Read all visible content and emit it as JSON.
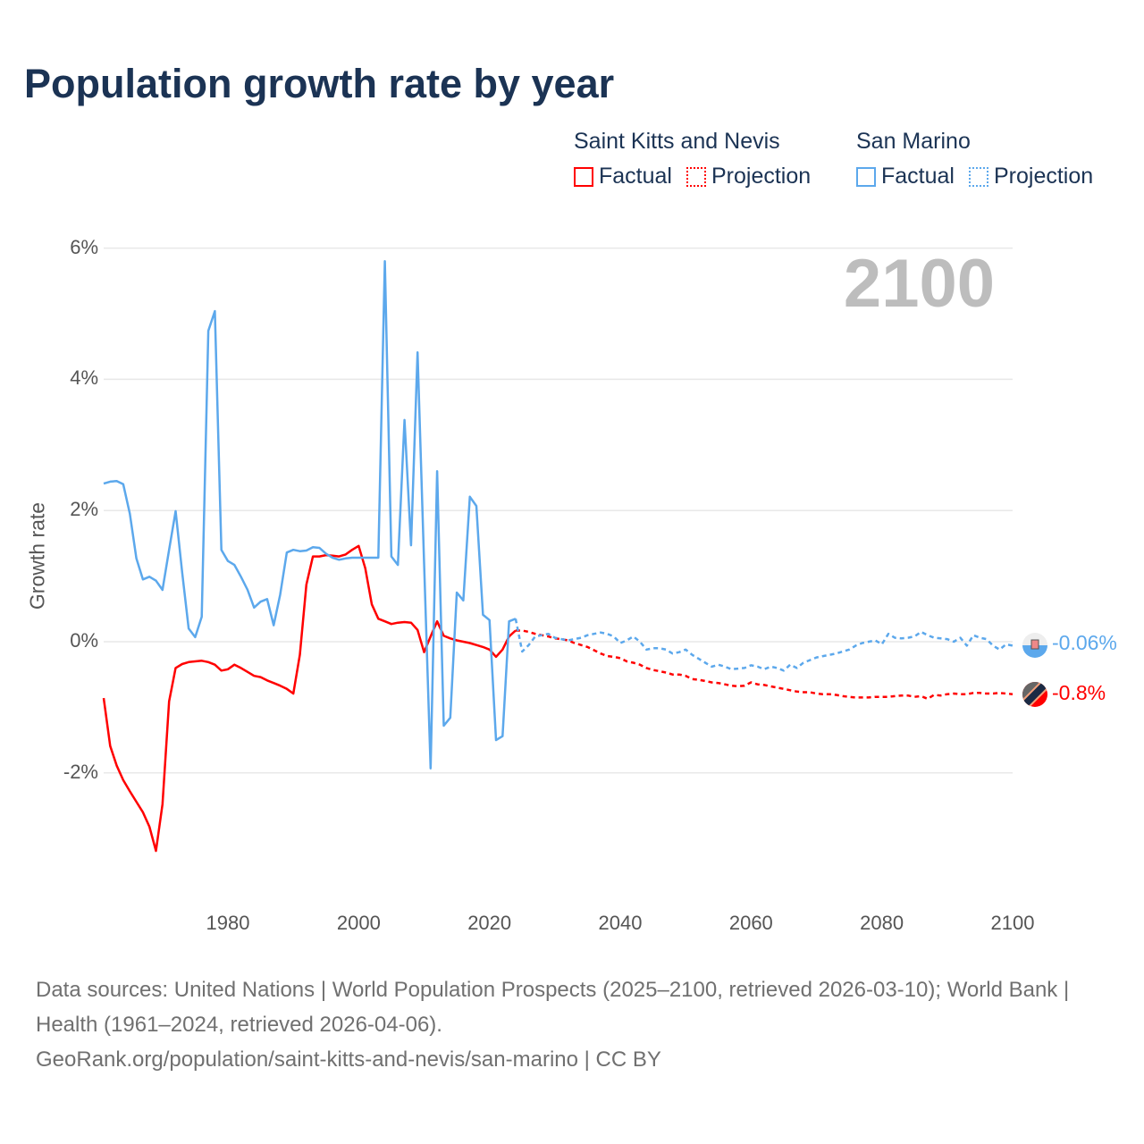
{
  "title": "Population growth rate by year",
  "legend": {
    "groups": [
      {
        "name": "Saint Kitts and Nevis",
        "factual": "Factual",
        "projection": "Projection",
        "color": "#ff0000"
      },
      {
        "name": "San Marino",
        "factual": "Factual",
        "projection": "Projection",
        "color": "#5ca8ec"
      }
    ]
  },
  "current_year_label": "2100",
  "end_labels": {
    "san_marino": "-0.06%",
    "saint_kitts": "-0.8%"
  },
  "footer": {
    "line1": "Data sources: United Nations | World Population Prospects (2025–2100, retrieved 2026-03-10); World Bank | Health (1961–2024, retrieved 2026-04-06).",
    "line2": "GeoRank.org/population/saint-kitts-and-nevis/san-marino | CC BY"
  },
  "chart_data": {
    "type": "line",
    "title": "Population growth rate by year",
    "xlabel": "",
    "ylabel": "Growth rate",
    "xlim": [
      1961,
      2100
    ],
    "ylim": [
      -3.5,
      6
    ],
    "x_ticks": [
      1980,
      2000,
      2020,
      2040,
      2060,
      2080,
      2100
    ],
    "y_ticks": [
      {
        "v": 6,
        "label": "6%"
      },
      {
        "v": 4,
        "label": "4%"
      },
      {
        "v": 2,
        "label": "2%"
      },
      {
        "v": 0,
        "label": "0%"
      },
      {
        "v": -2,
        "label": "-2%"
      }
    ],
    "grid": true,
    "legend_position": "top-right",
    "series": [
      {
        "name": "Saint Kitts and Nevis",
        "kind": "Factual",
        "color": "#ff0000",
        "x_start": 1961,
        "values": [
          -0.86,
          -1.59,
          -1.89,
          -2.11,
          -2.28,
          -2.44,
          -2.6,
          -2.82,
          -3.19,
          -2.48,
          -0.91,
          -0.4,
          -0.34,
          -0.31,
          -0.3,
          -0.29,
          -0.31,
          -0.35,
          -0.44,
          -0.42,
          -0.35,
          -0.4,
          -0.46,
          -0.52,
          -0.54,
          -0.59,
          -0.63,
          -0.67,
          -0.72,
          -0.79,
          -0.2,
          0.87,
          1.3,
          1.3,
          1.32,
          1.31,
          1.3,
          1.33,
          1.4,
          1.46,
          1.12,
          0.57,
          0.35,
          0.31,
          0.27,
          0.29,
          0.3,
          0.29,
          0.18,
          -0.16,
          0.08,
          0.31,
          0.09,
          0.05,
          0.02,
          0.0,
          -0.02,
          -0.05,
          -0.08,
          -0.12,
          -0.23,
          -0.12,
          0.08,
          0.17
        ]
      },
      {
        "name": "Saint Kitts and Nevis",
        "kind": "Projection",
        "color": "#ff0000",
        "x_start": 2025,
        "values": [
          0.17,
          0.15,
          0.12,
          0.1,
          0.08,
          0.05,
          0.04,
          0.02,
          -0.02,
          -0.05,
          -0.08,
          -0.13,
          -0.18,
          -0.22,
          -0.23,
          -0.25,
          -0.3,
          -0.32,
          -0.35,
          -0.4,
          -0.43,
          -0.45,
          -0.47,
          -0.5,
          -0.5,
          -0.52,
          -0.57,
          -0.58,
          -0.6,
          -0.62,
          -0.63,
          -0.65,
          -0.67,
          -0.68,
          -0.67,
          -0.62,
          -0.65,
          -0.66,
          -0.68,
          -0.7,
          -0.72,
          -0.74,
          -0.76,
          -0.77,
          -0.77,
          -0.79,
          -0.8,
          -0.8,
          -0.81,
          -0.83,
          -0.84,
          -0.85,
          -0.85,
          -0.85,
          -0.84,
          -0.84,
          -0.84,
          -0.83,
          -0.82,
          -0.82,
          -0.84,
          -0.83,
          -0.87,
          -0.81,
          -0.82,
          -0.8,
          -0.79,
          -0.8,
          -0.8,
          -0.78,
          -0.78,
          -0.79,
          -0.79,
          -0.78,
          -0.79,
          -0.8
        ]
      },
      {
        "name": "San Marino",
        "kind": "Factual",
        "color": "#5ca8ec",
        "x_start": 1961,
        "values": [
          2.41,
          2.44,
          2.45,
          2.4,
          1.95,
          1.27,
          0.95,
          0.99,
          0.93,
          0.79,
          1.4,
          1.99,
          1.06,
          0.2,
          0.07,
          0.38,
          4.74,
          5.04,
          1.4,
          1.23,
          1.17,
          0.99,
          0.79,
          0.52,
          0.61,
          0.65,
          0.25,
          0.72,
          1.36,
          1.4,
          1.38,
          1.39,
          1.44,
          1.43,
          1.34,
          1.28,
          1.25,
          1.27,
          1.28,
          1.28,
          1.28,
          1.28,
          1.28,
          5.8,
          1.3,
          1.17,
          3.38,
          1.47,
          4.41,
          1.2,
          -1.93,
          2.6,
          -1.28,
          -1.16,
          0.75,
          0.63,
          2.21,
          2.07,
          0.41,
          0.33,
          -1.5,
          -1.44,
          0.31,
          0.35
        ]
      },
      {
        "name": "San Marino",
        "kind": "Projection",
        "color": "#5ca8ec",
        "x_start": 2025,
        "values": [
          -0.15,
          -0.05,
          0.08,
          0.1,
          0.12,
          0.06,
          0.04,
          0.02,
          0.04,
          0.06,
          0.1,
          0.12,
          0.14,
          0.12,
          0.08,
          -0.02,
          0.02,
          0.08,
          0.0,
          -0.12,
          -0.1,
          -0.1,
          -0.12,
          -0.18,
          -0.16,
          -0.12,
          -0.2,
          -0.26,
          -0.32,
          -0.38,
          -0.35,
          -0.38,
          -0.42,
          -0.41,
          -0.4,
          -0.36,
          -0.38,
          -0.42,
          -0.38,
          -0.4,
          -0.44,
          -0.35,
          -0.4,
          -0.32,
          -0.28,
          -0.24,
          -0.22,
          -0.2,
          -0.18,
          -0.15,
          -0.12,
          -0.06,
          -0.02,
          0.0,
          0.02,
          -0.04,
          0.12,
          0.06,
          0.05,
          0.06,
          0.08,
          0.15,
          0.1,
          0.06,
          0.05,
          0.04,
          0.0,
          0.06,
          -0.06,
          0.1,
          0.06,
          0.04,
          -0.06,
          -0.12,
          -0.04,
          -0.06
        ]
      }
    ]
  }
}
